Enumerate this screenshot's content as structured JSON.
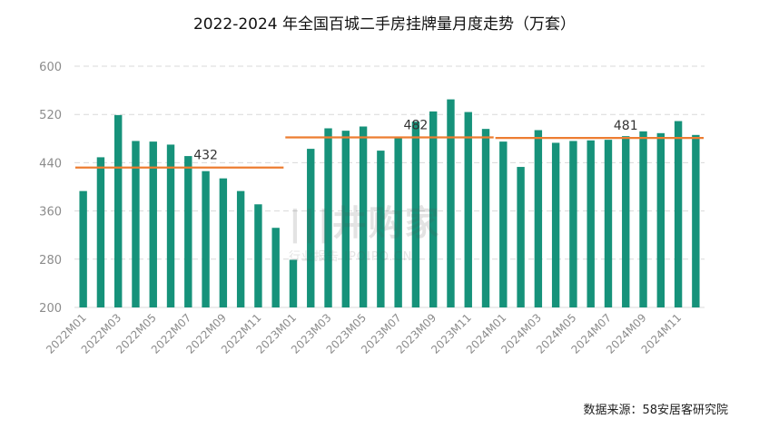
{
  "chart_data": {
    "type": "bar",
    "title": "2022-2024 年全国百城二手房挂牌量月度走势（万套）",
    "categories": [
      "2022M01",
      "2022M02",
      "2022M03",
      "2022M04",
      "2022M05",
      "2022M06",
      "2022M07",
      "2022M08",
      "2022M09",
      "2022M10",
      "2022M11",
      "2022M12",
      "2023M01",
      "2023M02",
      "2023M03",
      "2023M04",
      "2023M05",
      "2023M06",
      "2023M07",
      "2023M08",
      "2023M09",
      "2023M10",
      "2023M11",
      "2023M12",
      "2024M01",
      "2024M02",
      "2024M03",
      "2024M04",
      "2024M05",
      "2024M06",
      "2024M07",
      "2024M08",
      "2024M09",
      "2024M10",
      "2024M11",
      "2024M12"
    ],
    "tick_labels": [
      "2022M01",
      "2022M03",
      "2022M05",
      "2022M07",
      "2022M09",
      "2022M11",
      "2023M01",
      "2023M03",
      "2023M05",
      "2023M07",
      "2023M09",
      "2023M11",
      "2024M01",
      "2024M03",
      "2024M05",
      "2024M07",
      "2024M09",
      "2024M11"
    ],
    "values": [
      393,
      449,
      519,
      476,
      475,
      470,
      451,
      426,
      414,
      393,
      371,
      332,
      279,
      463,
      497,
      493,
      500,
      460,
      482,
      508,
      525,
      545,
      524,
      496,
      475,
      433,
      494,
      473,
      476,
      477,
      478,
      484,
      492,
      489,
      509,
      486
    ],
    "ylim": [
      200,
      600
    ],
    "yticks": [
      200,
      280,
      360,
      440,
      520,
      600
    ],
    "grid": true,
    "averages": [
      {
        "label": "432",
        "value": 432,
        "from": 0,
        "to": 11
      },
      {
        "label": "482",
        "value": 482,
        "from": 12,
        "to": 23
      },
      {
        "label": "481",
        "value": 481,
        "from": 24,
        "to": 35
      }
    ],
    "colors": {
      "bar": "#16927a",
      "avg_line": "#ed7d31",
      "grid": "#d9d9d9"
    }
  },
  "source": "数据来源：58安居客研究院",
  "watermark": {
    "logo": "|||井购家",
    "sub": "行业报告 IPOIPO.CN"
  }
}
